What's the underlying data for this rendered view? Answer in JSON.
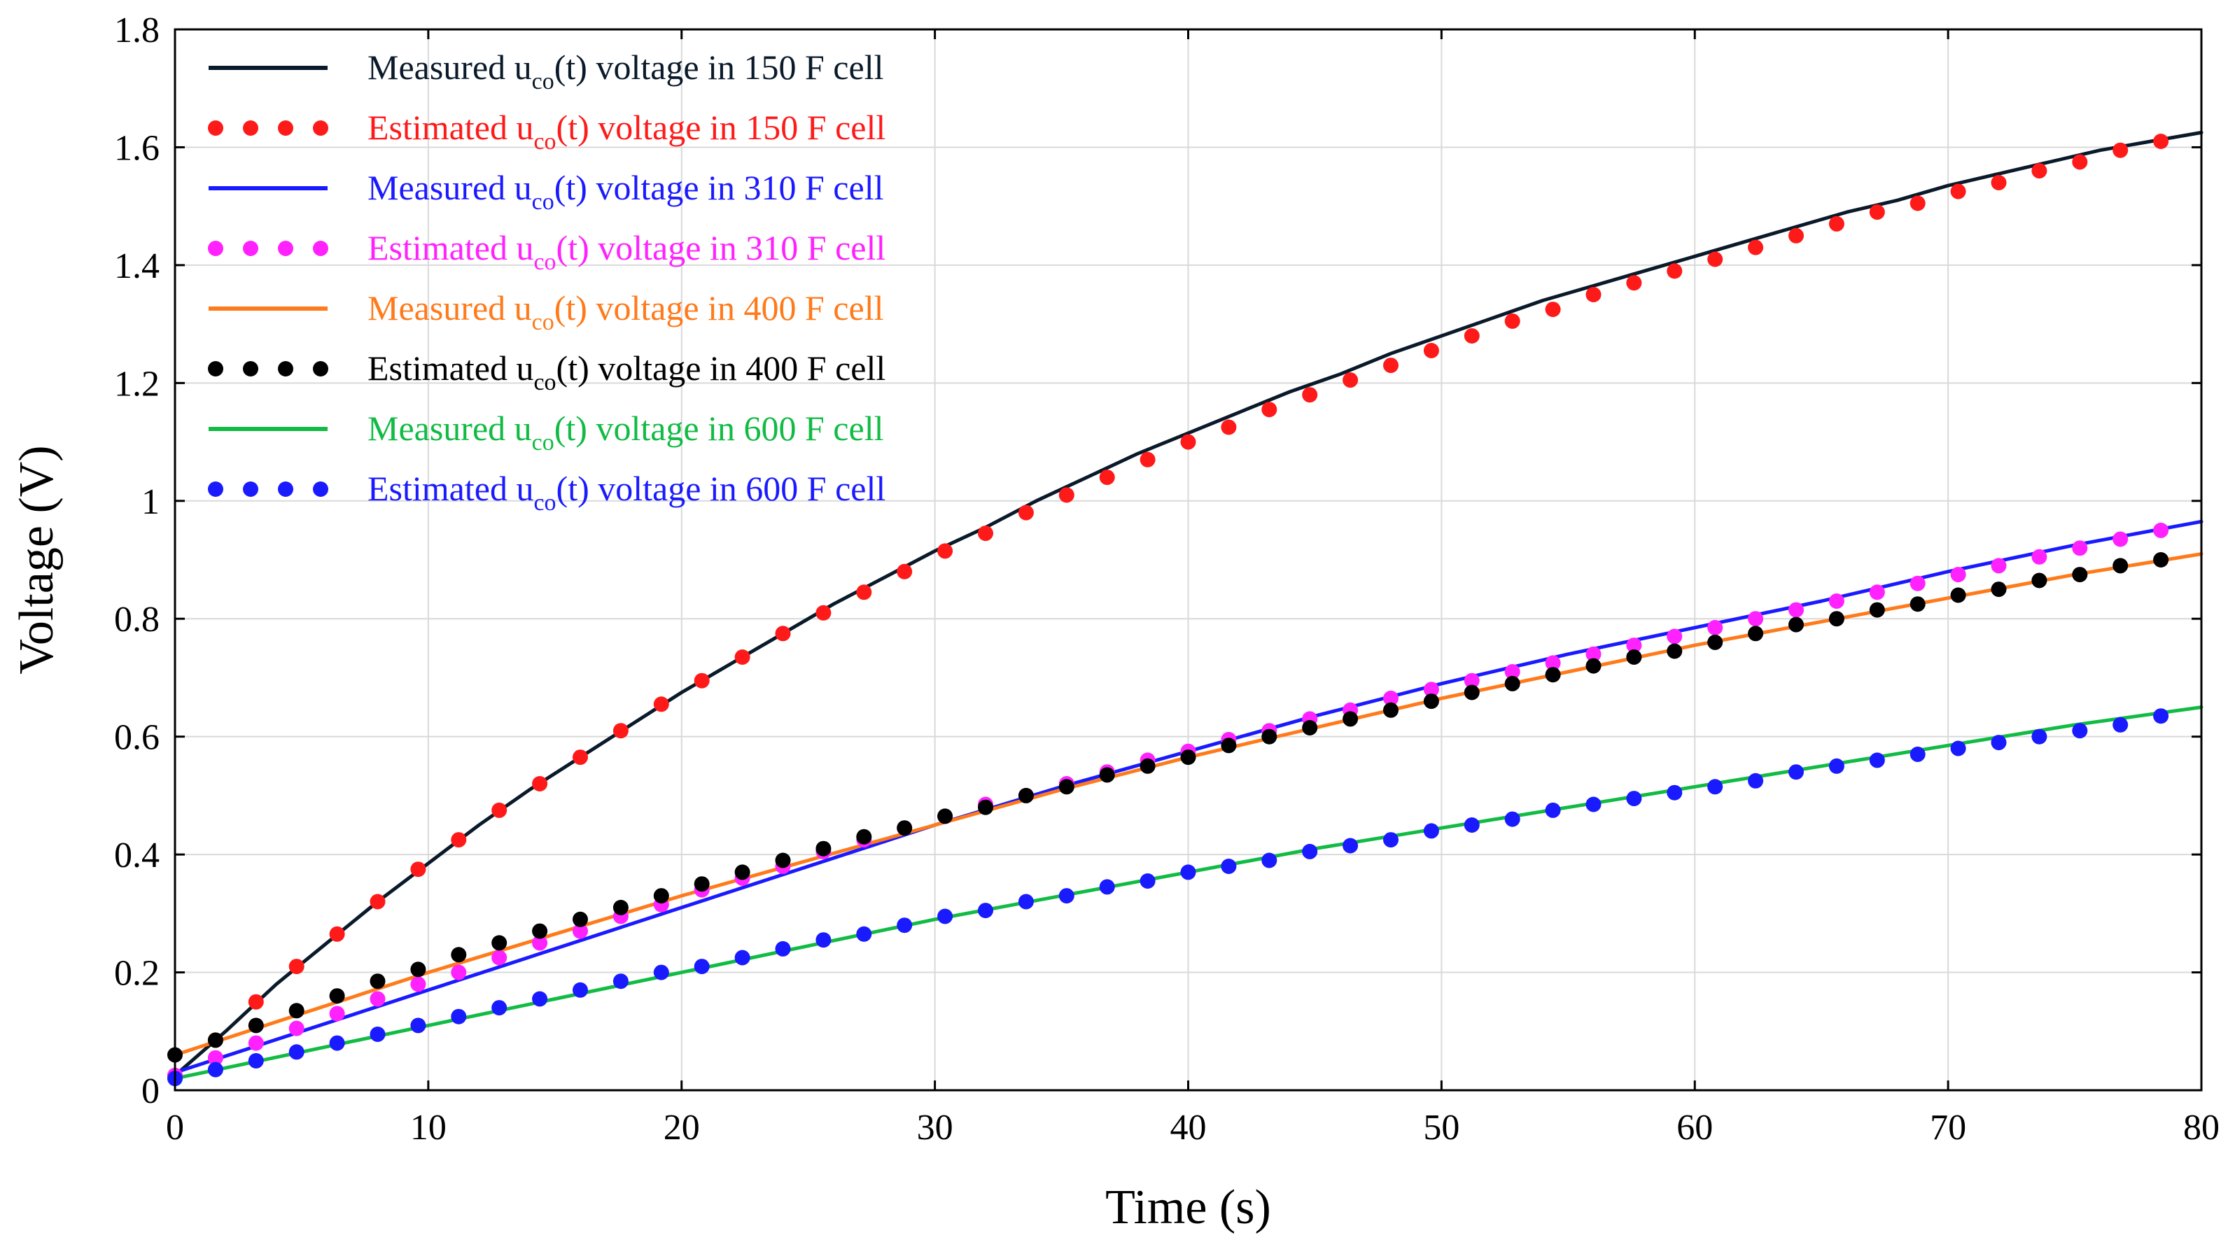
{
  "chart_data": {
    "type": "line",
    "title": "",
    "xlabel": "Time (s)",
    "ylabel": "Voltage (V)",
    "xlim": [
      0,
      80
    ],
    "ylim": [
      0,
      1.8
    ],
    "xticks": [
      0,
      10,
      20,
      30,
      40,
      50,
      60,
      70,
      80
    ],
    "xtick_labels": [
      "0",
      "10",
      "20",
      "30",
      "40",
      "50",
      "60",
      "70",
      "80"
    ],
    "yticks": [
      0,
      0.2,
      0.4,
      0.6,
      0.8,
      1,
      1.2,
      1.4,
      1.6,
      1.8
    ],
    "ytick_labels": [
      "0",
      "0.2",
      "0.4",
      "0.6",
      "0.8",
      "1",
      "1.2",
      "1.4",
      "1.6",
      "1.8"
    ],
    "grid": true,
    "legend_position": "top-left",
    "series": [
      {
        "name": "Measured uco(t) voltage in 150 F cell",
        "label_pre": "Measured u",
        "label_sub": "co",
        "label_post": "(t) voltage in 150 F cell",
        "style": "line",
        "color": "#0a1a2a",
        "x": [
          0,
          2,
          4,
          6,
          8,
          10,
          12,
          14,
          16,
          18,
          20,
          22,
          24,
          26,
          28,
          30,
          32,
          34,
          36,
          38,
          40,
          42,
          44,
          46,
          48,
          50,
          52,
          54,
          56,
          58,
          60,
          62,
          64,
          66,
          68,
          70,
          72,
          74,
          76,
          78,
          80
        ],
        "y": [
          0.025,
          0.1,
          0.18,
          0.25,
          0.32,
          0.385,
          0.45,
          0.51,
          0.565,
          0.62,
          0.675,
          0.725,
          0.775,
          0.825,
          0.87,
          0.915,
          0.955,
          1.0,
          1.04,
          1.08,
          1.115,
          1.15,
          1.185,
          1.215,
          1.25,
          1.28,
          1.31,
          1.34,
          1.365,
          1.39,
          1.415,
          1.44,
          1.465,
          1.49,
          1.51,
          1.535,
          1.555,
          1.575,
          1.595,
          1.61,
          1.625
        ]
      },
      {
        "name": "Estimated uco(t) voltage in 150 F cell",
        "label_pre": "Estimated u",
        "label_sub": "co",
        "label_post": "(t) voltage in 150 F cell",
        "style": "dots",
        "color": "#ff1a1a",
        "x": [
          0,
          1.6,
          3.2,
          4.8,
          6.4,
          8,
          9.6,
          11.2,
          12.8,
          14.4,
          16,
          17.6,
          19.2,
          20.8,
          22.4,
          24,
          25.6,
          27.2,
          28.8,
          30.4,
          32,
          33.6,
          35.2,
          36.8,
          38.4,
          40,
          41.6,
          43.2,
          44.8,
          46.4,
          48,
          49.6,
          51.2,
          52.8,
          54.4,
          56,
          57.6,
          59.2,
          60.8,
          62.4,
          64,
          65.6,
          67.2,
          68.8,
          70.4,
          72,
          73.6,
          75.2,
          76.8,
          78.4
        ],
        "y": [
          0.025,
          0.085,
          0.15,
          0.21,
          0.265,
          0.32,
          0.375,
          0.425,
          0.475,
          0.52,
          0.565,
          0.61,
          0.655,
          0.695,
          0.735,
          0.775,
          0.81,
          0.845,
          0.88,
          0.915,
          0.945,
          0.98,
          1.01,
          1.04,
          1.07,
          1.1,
          1.125,
          1.155,
          1.18,
          1.205,
          1.23,
          1.255,
          1.28,
          1.305,
          1.325,
          1.35,
          1.37,
          1.39,
          1.41,
          1.43,
          1.45,
          1.47,
          1.49,
          1.505,
          1.525,
          1.54,
          1.56,
          1.575,
          1.595,
          1.61
        ]
      },
      {
        "name": "Measured uco(t) voltage in 310 F cell",
        "label_pre": "Measured u",
        "label_sub": "co",
        "label_post": "(t) voltage in 310 F cell",
        "style": "line",
        "color": "#1a1aff",
        "x": [
          0,
          5,
          10,
          15,
          20,
          25,
          30,
          35,
          40,
          45,
          50,
          55,
          60,
          65,
          70,
          75,
          80
        ],
        "y": [
          0.03,
          0.1,
          0.17,
          0.24,
          0.31,
          0.38,
          0.45,
          0.515,
          0.575,
          0.635,
          0.69,
          0.74,
          0.785,
          0.83,
          0.88,
          0.925,
          0.965
        ]
      },
      {
        "name": "Estimated uco(t) voltage in 310 F cell",
        "label_pre": "Estimated u",
        "label_sub": "co",
        "label_post": "(t) voltage in 310 F cell",
        "style": "dots",
        "color": "#ff22ff",
        "x": [
          0,
          1.6,
          3.2,
          4.8,
          6.4,
          8,
          9.6,
          11.2,
          12.8,
          14.4,
          16,
          17.6,
          19.2,
          20.8,
          22.4,
          24,
          25.6,
          27.2,
          28.8,
          30.4,
          32,
          33.6,
          35.2,
          36.8,
          38.4,
          40,
          41.6,
          43.2,
          44.8,
          46.4,
          48,
          49.6,
          51.2,
          52.8,
          54.4,
          56,
          57.6,
          59.2,
          60.8,
          62.4,
          64,
          65.6,
          67.2,
          68.8,
          70.4,
          72,
          73.6,
          75.2,
          76.8,
          78.4
        ],
        "y": [
          0.025,
          0.055,
          0.08,
          0.105,
          0.13,
          0.155,
          0.18,
          0.2,
          0.225,
          0.25,
          0.27,
          0.295,
          0.315,
          0.34,
          0.36,
          0.38,
          0.405,
          0.425,
          0.445,
          0.465,
          0.485,
          0.5,
          0.52,
          0.54,
          0.56,
          0.575,
          0.595,
          0.61,
          0.63,
          0.645,
          0.665,
          0.68,
          0.695,
          0.71,
          0.725,
          0.74,
          0.755,
          0.77,
          0.785,
          0.8,
          0.815,
          0.83,
          0.845,
          0.86,
          0.875,
          0.89,
          0.905,
          0.92,
          0.935,
          0.95
        ]
      },
      {
        "name": "Measured uco(t) voltage in 400 F cell",
        "label_pre": "Measured u",
        "label_sub": "co",
        "label_post": "(t) voltage in 400 F cell",
        "style": "line",
        "color": "#ff7a1a",
        "x": [
          0,
          5,
          10,
          15,
          20,
          25,
          30,
          35,
          40,
          45,
          50,
          55,
          60,
          65,
          70,
          75,
          80
        ],
        "y": [
          0.06,
          0.13,
          0.2,
          0.265,
          0.33,
          0.39,
          0.45,
          0.51,
          0.565,
          0.615,
          0.665,
          0.71,
          0.755,
          0.795,
          0.835,
          0.875,
          0.91
        ]
      },
      {
        "name": "Estimated uco(t) voltage in 400 F cell",
        "label_pre": "Estimated u",
        "label_sub": "co",
        "label_post": "(t) voltage in 400 F cell",
        "style": "dots",
        "color": "#000000",
        "x": [
          0,
          1.6,
          3.2,
          4.8,
          6.4,
          8,
          9.6,
          11.2,
          12.8,
          14.4,
          16,
          17.6,
          19.2,
          20.8,
          22.4,
          24,
          25.6,
          27.2,
          28.8,
          30.4,
          32,
          33.6,
          35.2,
          36.8,
          38.4,
          40,
          41.6,
          43.2,
          44.8,
          46.4,
          48,
          49.6,
          51.2,
          52.8,
          54.4,
          56,
          57.6,
          59.2,
          60.8,
          62.4,
          64,
          65.6,
          67.2,
          68.8,
          70.4,
          72,
          73.6,
          75.2,
          76.8,
          78.4
        ],
        "y": [
          0.06,
          0.085,
          0.11,
          0.135,
          0.16,
          0.185,
          0.205,
          0.23,
          0.25,
          0.27,
          0.29,
          0.31,
          0.33,
          0.35,
          0.37,
          0.39,
          0.41,
          0.43,
          0.445,
          0.465,
          0.48,
          0.5,
          0.515,
          0.535,
          0.55,
          0.565,
          0.585,
          0.6,
          0.615,
          0.63,
          0.645,
          0.66,
          0.675,
          0.69,
          0.705,
          0.72,
          0.735,
          0.745,
          0.76,
          0.775,
          0.79,
          0.8,
          0.815,
          0.825,
          0.84,
          0.85,
          0.865,
          0.875,
          0.89,
          0.9
        ]
      },
      {
        "name": "Measured uco(t) voltage in 600 F cell",
        "label_pre": "Measured u",
        "label_sub": "co",
        "label_post": "(t) voltage in 600 F cell",
        "style": "line",
        "color": "#11bb44",
        "x": [
          0,
          5,
          10,
          15,
          20,
          25,
          30,
          35,
          40,
          45,
          50,
          55,
          60,
          65,
          70,
          75,
          80
        ],
        "y": [
          0.02,
          0.065,
          0.11,
          0.155,
          0.2,
          0.245,
          0.29,
          0.33,
          0.37,
          0.41,
          0.445,
          0.48,
          0.515,
          0.55,
          0.585,
          0.62,
          0.65
        ]
      },
      {
        "name": "Estimated uco(t) voltage in 600 F cell",
        "label_pre": "Estimated u",
        "label_sub": "co",
        "label_post": "(t) voltage in 600 F cell",
        "style": "dots",
        "color": "#1a1aff",
        "x": [
          0,
          1.6,
          3.2,
          4.8,
          6.4,
          8,
          9.6,
          11.2,
          12.8,
          14.4,
          16,
          17.6,
          19.2,
          20.8,
          22.4,
          24,
          25.6,
          27.2,
          28.8,
          30.4,
          32,
          33.6,
          35.2,
          36.8,
          38.4,
          40,
          41.6,
          43.2,
          44.8,
          46.4,
          48,
          49.6,
          51.2,
          52.8,
          54.4,
          56,
          57.6,
          59.2,
          60.8,
          62.4,
          64,
          65.6,
          67.2,
          68.8,
          70.4,
          72,
          73.6,
          75.2,
          76.8,
          78.4
        ],
        "y": [
          0.02,
          0.035,
          0.05,
          0.065,
          0.08,
          0.095,
          0.11,
          0.125,
          0.14,
          0.155,
          0.17,
          0.185,
          0.2,
          0.21,
          0.225,
          0.24,
          0.255,
          0.265,
          0.28,
          0.295,
          0.305,
          0.32,
          0.33,
          0.345,
          0.355,
          0.37,
          0.38,
          0.39,
          0.405,
          0.415,
          0.425,
          0.44,
          0.45,
          0.46,
          0.475,
          0.485,
          0.495,
          0.505,
          0.515,
          0.525,
          0.54,
          0.55,
          0.56,
          0.57,
          0.58,
          0.59,
          0.6,
          0.61,
          0.62,
          0.635
        ]
      }
    ]
  }
}
